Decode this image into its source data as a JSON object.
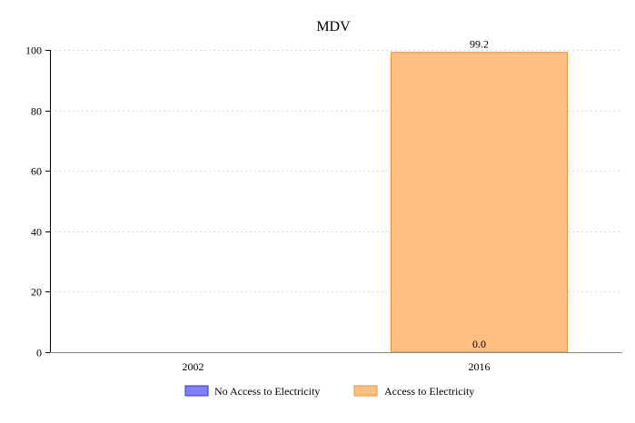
{
  "chart_data": {
    "type": "bar",
    "title": "MDV",
    "xlabel": "",
    "ylabel": "",
    "categories": [
      "2002",
      "2016"
    ],
    "ylim": [
      0,
      100
    ],
    "yticks": [
      0,
      20,
      40,
      60,
      80,
      100
    ],
    "grid": true,
    "legend_position": "bottom",
    "stacked": true,
    "series": [
      {
        "name": "No Access to Electricity",
        "values": [
          null,
          0.0
        ],
        "labels": [
          "",
          "0.0"
        ],
        "fill": "#8080ff",
        "stroke": "#3333cc"
      },
      {
        "name": "Access to Electricity",
        "values": [
          null,
          99.2
        ],
        "labels": [
          "",
          "99.2"
        ],
        "fill": "#ffbf80",
        "stroke": "#f09030"
      }
    ]
  }
}
